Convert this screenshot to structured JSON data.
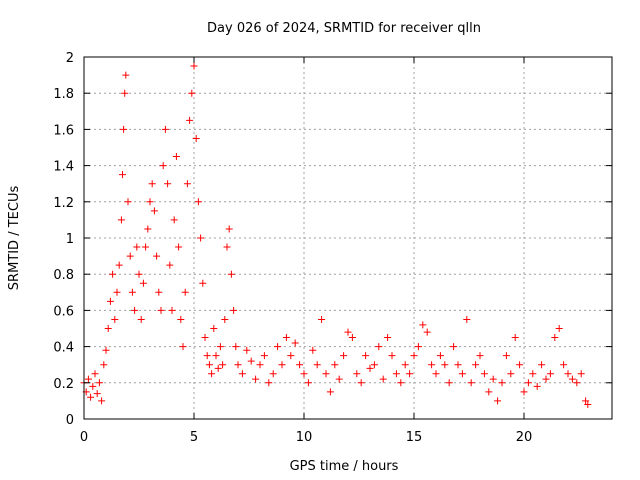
{
  "chart_data": {
    "type": "scatter",
    "title": "Day 026 of 2024, SRMTID for receiver qlln",
    "xlabel": "GPS time / hours",
    "ylabel": "SRMTID / TECUs",
    "xlim": [
      0,
      24
    ],
    "ylim": [
      0,
      2
    ],
    "xticks": [
      0,
      5,
      10,
      15,
      20
    ],
    "yticks": [
      0,
      0.2,
      0.4,
      0.6,
      0.8,
      1,
      1.2,
      1.4,
      1.6,
      1.8,
      2
    ],
    "grid": true,
    "marker": "+",
    "color": "#ff0000",
    "series": [
      {
        "name": "SRMTID",
        "points": [
          [
            0.0,
            0.2
          ],
          [
            0.1,
            0.15
          ],
          [
            0.2,
            0.22
          ],
          [
            0.3,
            0.12
          ],
          [
            0.4,
            0.18
          ],
          [
            0.5,
            0.25
          ],
          [
            0.6,
            0.14
          ],
          [
            0.7,
            0.2
          ],
          [
            0.8,
            0.1
          ],
          [
            0.9,
            0.3
          ],
          [
            1.0,
            0.38
          ],
          [
            1.1,
            0.5
          ],
          [
            1.2,
            0.65
          ],
          [
            1.3,
            0.8
          ],
          [
            1.4,
            0.55
          ],
          [
            1.5,
            0.7
          ],
          [
            1.6,
            0.85
          ],
          [
            1.7,
            1.1
          ],
          [
            1.75,
            1.35
          ],
          [
            1.8,
            1.6
          ],
          [
            1.85,
            1.8
          ],
          [
            1.9,
            1.9
          ],
          [
            2.0,
            1.2
          ],
          [
            2.1,
            0.9
          ],
          [
            2.2,
            0.7
          ],
          [
            2.3,
            0.6
          ],
          [
            2.4,
            0.95
          ],
          [
            2.5,
            0.8
          ],
          [
            2.6,
            0.55
          ],
          [
            2.7,
            0.75
          ],
          [
            2.8,
            0.95
          ],
          [
            2.9,
            1.05
          ],
          [
            3.0,
            1.2
          ],
          [
            3.1,
            1.3
          ],
          [
            3.2,
            1.15
          ],
          [
            3.3,
            0.9
          ],
          [
            3.4,
            0.7
          ],
          [
            3.5,
            0.6
          ],
          [
            3.6,
            1.4
          ],
          [
            3.7,
            1.6
          ],
          [
            3.8,
            1.3
          ],
          [
            3.9,
            0.85
          ],
          [
            4.0,
            0.6
          ],
          [
            4.1,
            1.1
          ],
          [
            4.2,
            1.45
          ],
          [
            4.3,
            0.95
          ],
          [
            4.4,
            0.55
          ],
          [
            4.5,
            0.4
          ],
          [
            4.6,
            0.7
          ],
          [
            4.7,
            1.3
          ],
          [
            4.8,
            1.65
          ],
          [
            4.9,
            1.8
          ],
          [
            5.0,
            1.95
          ],
          [
            5.1,
            1.55
          ],
          [
            5.2,
            1.2
          ],
          [
            5.3,
            1.0
          ],
          [
            5.4,
            0.75
          ],
          [
            5.5,
            0.45
          ],
          [
            5.6,
            0.35
          ],
          [
            5.7,
            0.3
          ],
          [
            5.8,
            0.25
          ],
          [
            5.9,
            0.5
          ],
          [
            6.0,
            0.35
          ],
          [
            6.1,
            0.28
          ],
          [
            6.2,
            0.4
          ],
          [
            6.3,
            0.3
          ],
          [
            6.4,
            0.55
          ],
          [
            6.5,
            0.95
          ],
          [
            6.6,
            1.05
          ],
          [
            6.7,
            0.8
          ],
          [
            6.8,
            0.6
          ],
          [
            6.9,
            0.4
          ],
          [
            7.0,
            0.3
          ],
          [
            7.2,
            0.25
          ],
          [
            7.4,
            0.38
          ],
          [
            7.6,
            0.32
          ],
          [
            7.8,
            0.22
          ],
          [
            8.0,
            0.3
          ],
          [
            8.2,
            0.35
          ],
          [
            8.4,
            0.2
          ],
          [
            8.6,
            0.25
          ],
          [
            8.8,
            0.4
          ],
          [
            9.0,
            0.3
          ],
          [
            9.2,
            0.45
          ],
          [
            9.4,
            0.35
          ],
          [
            9.6,
            0.42
          ],
          [
            9.8,
            0.3
          ],
          [
            10.0,
            0.25
          ],
          [
            10.2,
            0.2
          ],
          [
            10.4,
            0.38
          ],
          [
            10.6,
            0.3
          ],
          [
            10.8,
            0.55
          ],
          [
            11.0,
            0.25
          ],
          [
            11.2,
            0.15
          ],
          [
            11.4,
            0.3
          ],
          [
            11.6,
            0.22
          ],
          [
            11.8,
            0.35
          ],
          [
            12.0,
            0.48
          ],
          [
            12.2,
            0.45
          ],
          [
            12.4,
            0.25
          ],
          [
            12.6,
            0.2
          ],
          [
            12.8,
            0.35
          ],
          [
            13.0,
            0.28
          ],
          [
            13.2,
            0.3
          ],
          [
            13.4,
            0.4
          ],
          [
            13.6,
            0.22
          ],
          [
            13.8,
            0.45
          ],
          [
            14.0,
            0.35
          ],
          [
            14.2,
            0.25
          ],
          [
            14.4,
            0.2
          ],
          [
            14.6,
            0.3
          ],
          [
            14.8,
            0.25
          ],
          [
            15.0,
            0.35
          ],
          [
            15.2,
            0.4
          ],
          [
            15.4,
            0.52
          ],
          [
            15.6,
            0.48
          ],
          [
            15.8,
            0.3
          ],
          [
            16.0,
            0.25
          ],
          [
            16.2,
            0.35
          ],
          [
            16.4,
            0.3
          ],
          [
            16.6,
            0.2
          ],
          [
            16.8,
            0.4
          ],
          [
            17.0,
            0.3
          ],
          [
            17.2,
            0.25
          ],
          [
            17.4,
            0.55
          ],
          [
            17.6,
            0.2
          ],
          [
            17.8,
            0.3
          ],
          [
            18.0,
            0.35
          ],
          [
            18.2,
            0.25
          ],
          [
            18.4,
            0.15
          ],
          [
            18.6,
            0.22
          ],
          [
            18.8,
            0.1
          ],
          [
            19.0,
            0.2
          ],
          [
            19.2,
            0.35
          ],
          [
            19.4,
            0.25
          ],
          [
            19.6,
            0.45
          ],
          [
            19.8,
            0.3
          ],
          [
            20.0,
            0.15
          ],
          [
            20.2,
            0.2
          ],
          [
            20.4,
            0.25
          ],
          [
            20.6,
            0.18
          ],
          [
            20.8,
            0.3
          ],
          [
            21.0,
            0.22
          ],
          [
            21.2,
            0.25
          ],
          [
            21.4,
            0.45
          ],
          [
            21.6,
            0.5
          ],
          [
            21.8,
            0.3
          ],
          [
            22.0,
            0.25
          ],
          [
            22.2,
            0.22
          ],
          [
            22.4,
            0.2
          ],
          [
            22.6,
            0.25
          ],
          [
            22.8,
            0.1
          ],
          [
            22.9,
            0.08
          ]
        ]
      }
    ]
  }
}
